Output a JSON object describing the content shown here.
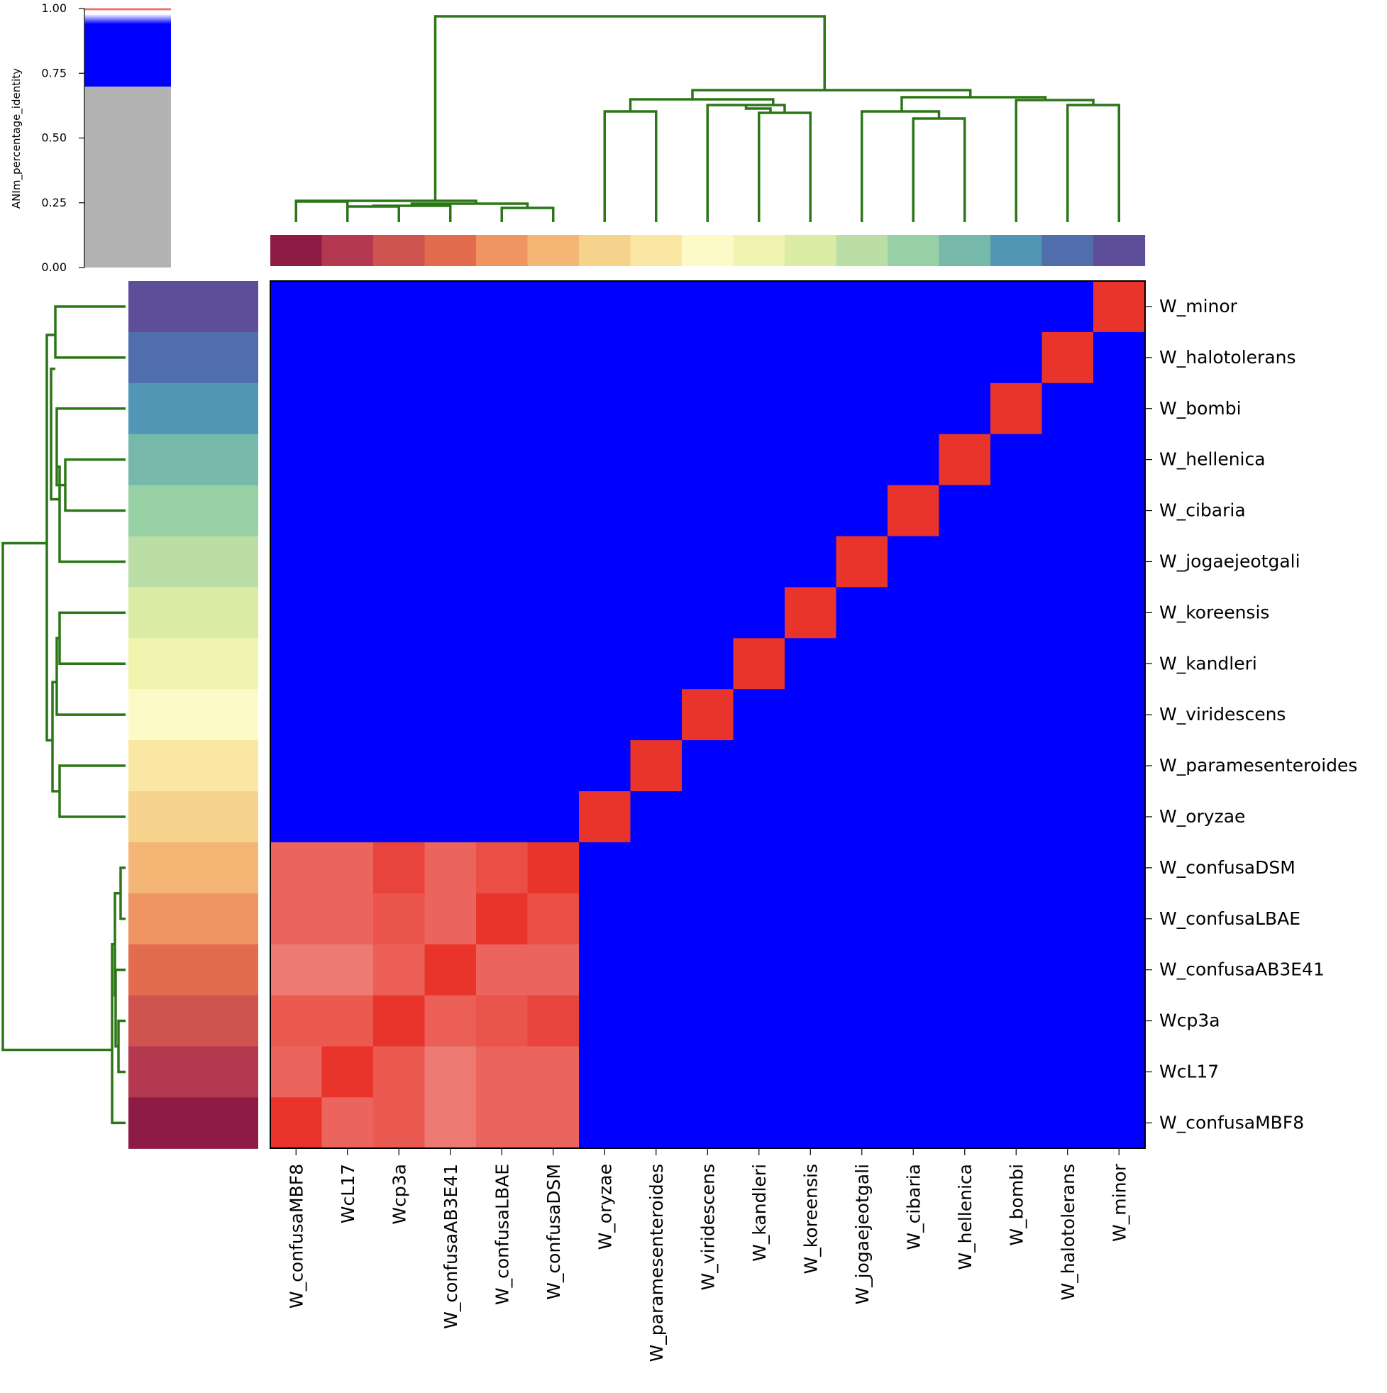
{
  "chart_data": {
    "type": "heatmap",
    "title": "",
    "metric": "ANIm_percentage_identity",
    "colorbar": {
      "label": "ANIm_percentage_identity",
      "ticks": [
        "0.00",
        "0.25",
        "0.50",
        "0.75",
        "1.00"
      ],
      "range": [
        0,
        1
      ],
      "threshold": 0.7,
      "low_color": "#b3b3b3",
      "mid_color": "#0000ff",
      "high_color": "#e8342a"
    },
    "columns": [
      "W_confusaMBF8",
      "WcL17",
      "Wcp3a",
      "W_confusaAB3E41",
      "W_confusaLBAE",
      "W_confusaDSM",
      "W_oryzae",
      "W_paramesenteroides",
      "W_viridescens",
      "W_kandleri",
      "W_koreensis",
      "W_jogaejeotgali",
      "W_cibaria",
      "W_hellenica",
      "W_bombi",
      "W_halotolerans",
      "W_minor"
    ],
    "rows": [
      "W_minor",
      "W_halotolerans",
      "W_bombi",
      "W_hellenica",
      "W_cibaria",
      "W_jogaejeotgali",
      "W_koreensis",
      "W_kandleri",
      "W_viridescens",
      "W_paramesenteroides",
      "W_oryzae",
      "W_confusaDSM",
      "W_confusaLBAE",
      "W_confusaAB3E41",
      "Wcp3a",
      "WcL17",
      "W_confusaMBF8"
    ],
    "cluster_values": [
      [
        "1.000",
        "0.985",
        "0.987",
        "0.981",
        "0.985",
        "0.985"
      ],
      [
        "0.985",
        "1.000",
        "0.987",
        "0.981",
        "0.985",
        "0.985"
      ],
      [
        "0.987",
        "0.987",
        "1.000",
        "0.986",
        "0.988",
        "0.991"
      ],
      [
        "0.981",
        "0.981",
        "0.986",
        "1.000",
        "0.985",
        "0.985"
      ],
      [
        "0.985",
        "0.985",
        "0.988",
        "0.985",
        "1.000",
        "0.989"
      ],
      [
        "0.985",
        "0.985",
        "0.991",
        "0.985",
        "0.989",
        "1.000"
      ]
    ],
    "off_cluster_value": "0.800",
    "diagonal_value": "1.000",
    "group_colors": [
      "#8e1b44",
      "#b4384f",
      "#cf534f",
      "#e36c4e",
      "#ee9561",
      "#f3b675",
      "#f6d38d",
      "#fae7a4",
      "#fefac8",
      "#f0f4af",
      "#dbeda5",
      "#bbdda6",
      "#97d0a5",
      "#76b9aa",
      "#5196b5",
      "#4f6eab",
      "#5e4d98"
    ],
    "dendrogram_color": "#2b7616"
  }
}
